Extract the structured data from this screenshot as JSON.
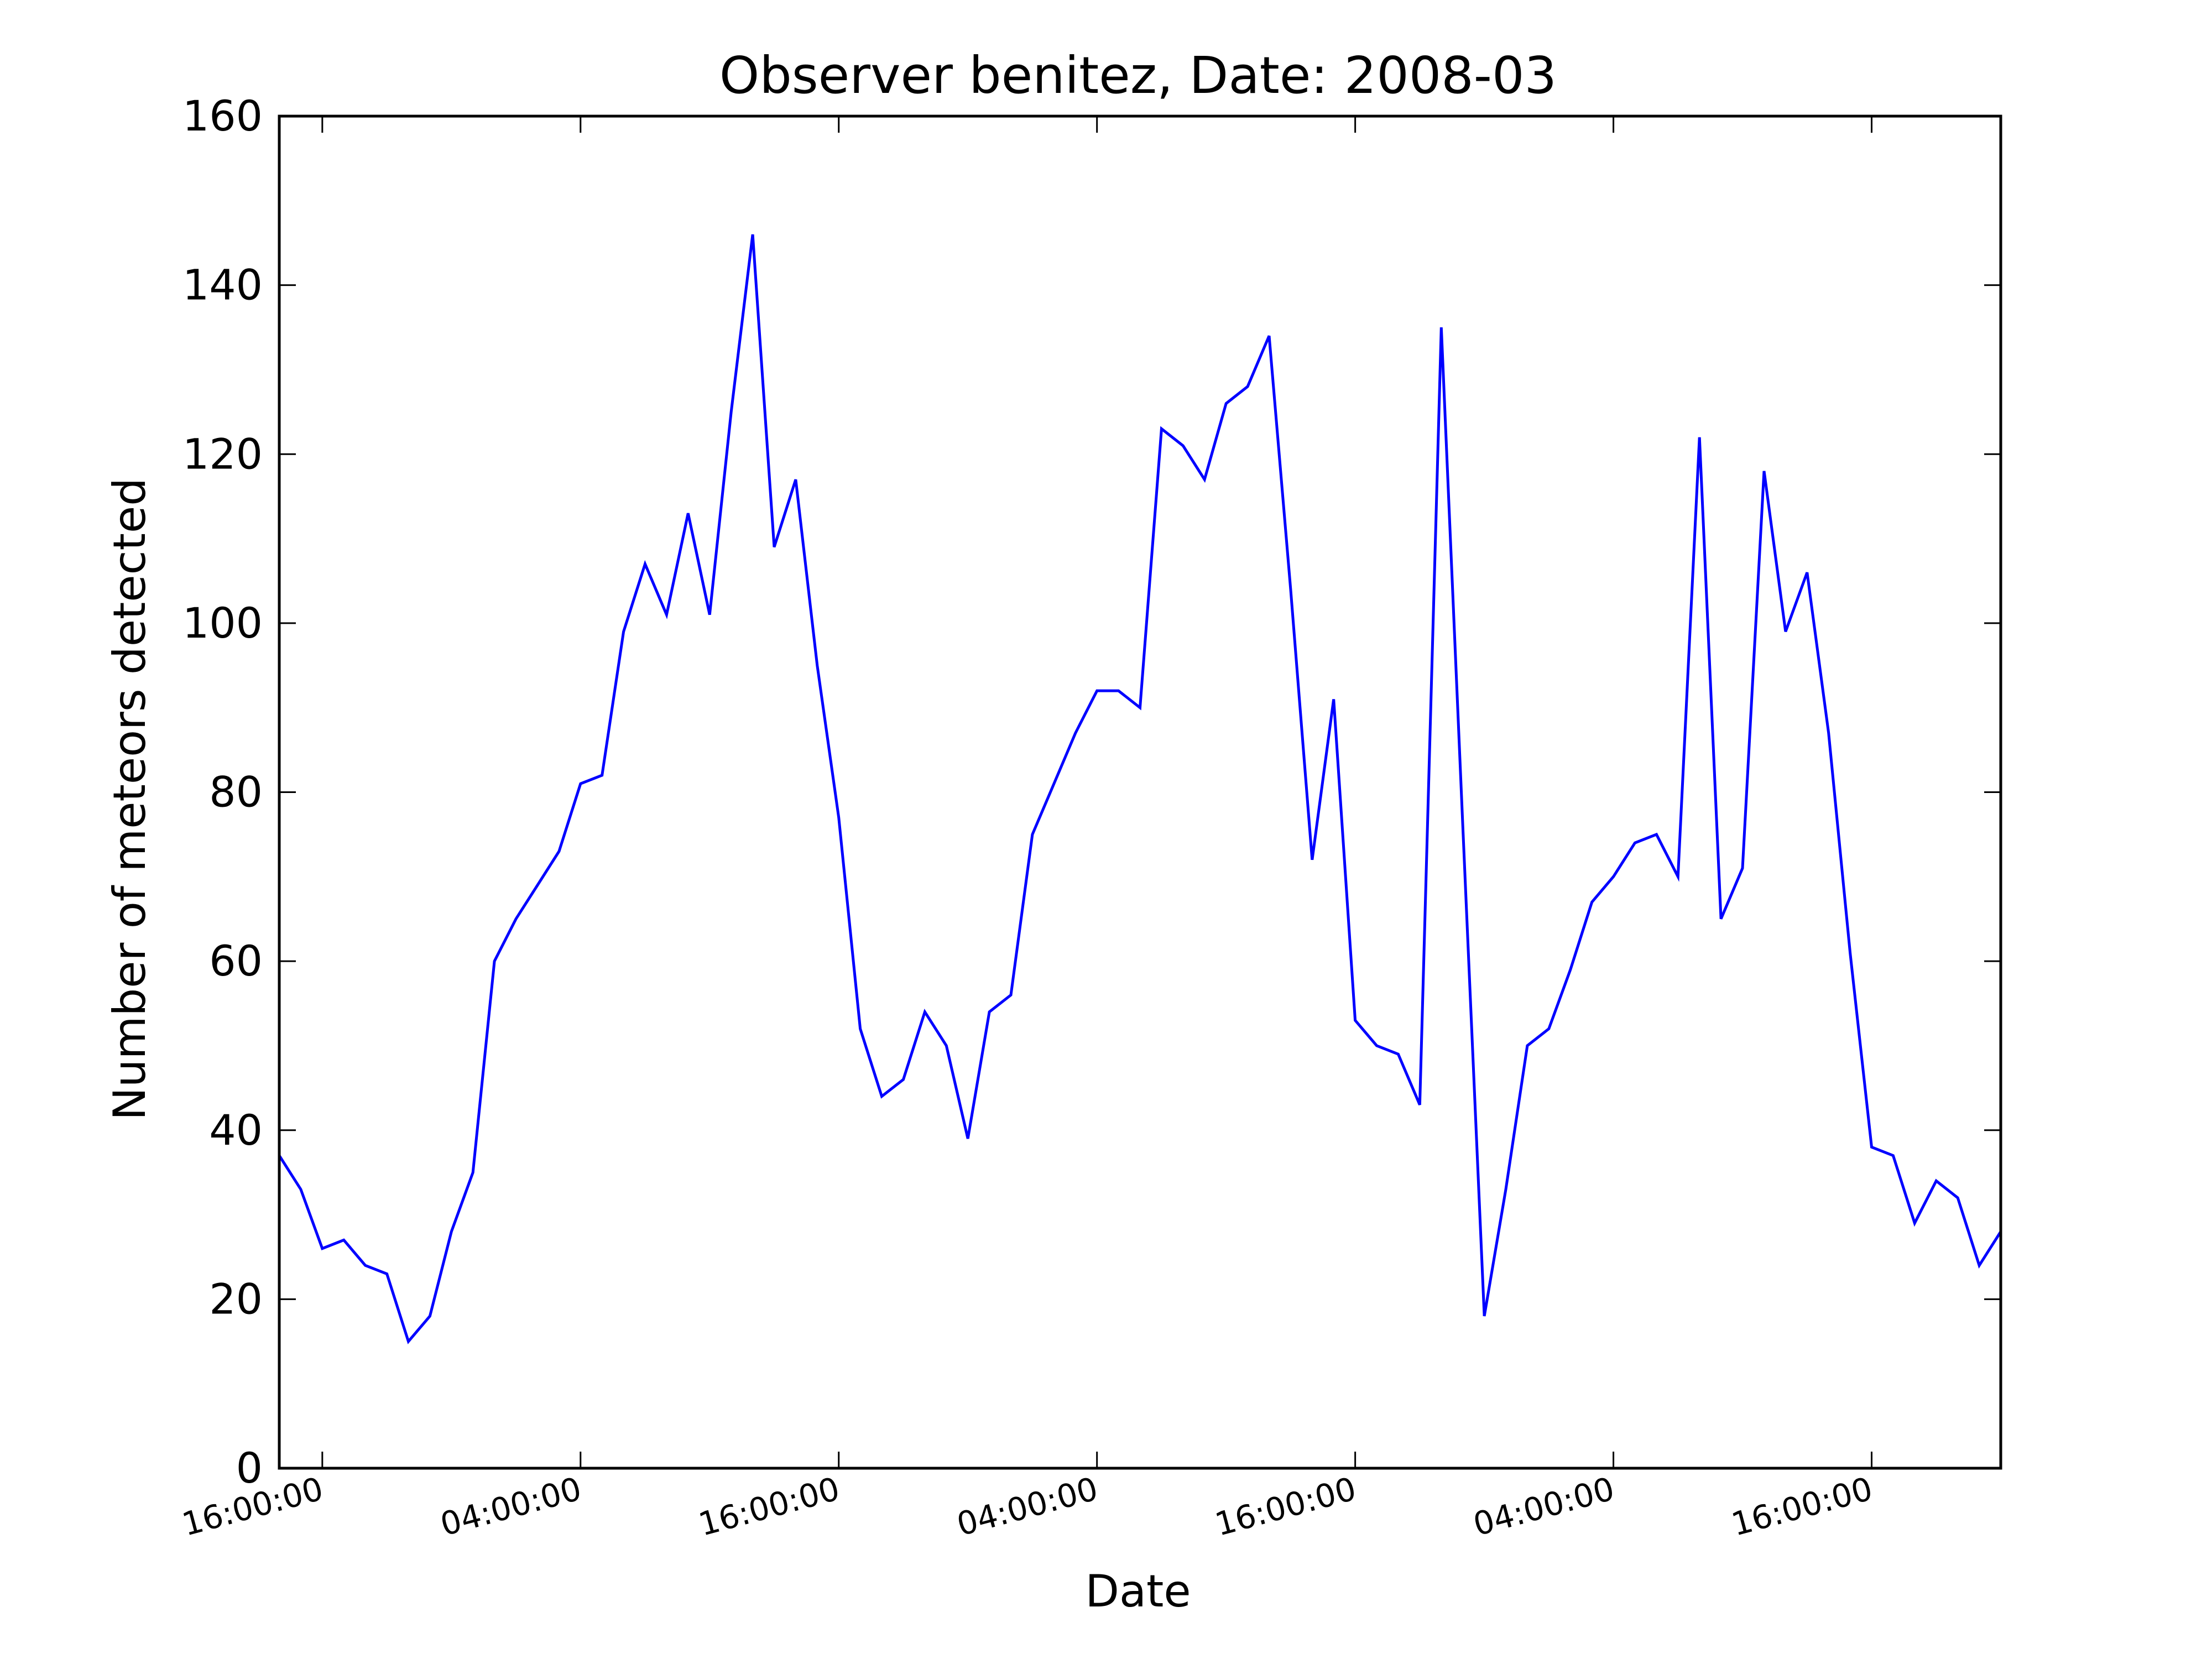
{
  "chart_data": {
    "type": "line",
    "title": "Observer benitez, Date: 2008-03",
    "xlabel": "Date",
    "ylabel": "Number of meteors detected",
    "ylim": [
      0,
      160
    ],
    "yticks": [
      0,
      20,
      40,
      60,
      80,
      100,
      120,
      140,
      160
    ],
    "xlim": [
      14,
      94
    ],
    "xticks": [
      {
        "label": "16:00:00",
        "value": 16
      },
      {
        "label": "04:00:00",
        "value": 28
      },
      {
        "label": "16:00:00",
        "value": 40
      },
      {
        "label": "04:00:00",
        "value": 52
      },
      {
        "label": "16:00:00",
        "value": 64
      },
      {
        "label": "04:00:00",
        "value": 76
      },
      {
        "label": "16:00:00",
        "value": 88
      }
    ],
    "grid": false,
    "legend": "none",
    "series": [
      {
        "color": "#0000ff",
        "x": [
          14,
          15,
          16,
          17,
          18,
          19,
          20,
          21,
          22,
          23,
          24,
          25,
          26,
          27,
          28,
          29,
          30,
          31,
          32,
          33,
          34,
          35,
          36,
          37,
          38,
          39,
          40,
          41,
          42,
          43,
          44,
          45,
          46,
          47,
          48,
          49,
          50,
          51,
          52,
          53,
          54,
          55,
          56,
          57,
          58,
          59,
          60,
          61,
          62,
          63,
          64,
          65,
          66,
          67,
          68,
          69,
          70,
          71,
          72,
          73,
          74,
          75,
          76,
          77,
          78,
          79,
          80,
          81,
          82,
          83,
          84,
          85,
          86,
          87,
          88,
          89,
          90,
          91,
          92,
          93,
          94
        ],
        "y": [
          37,
          33,
          26,
          27,
          24,
          23,
          15,
          18,
          28,
          35,
          60,
          65,
          69,
          73,
          81,
          82,
          99,
          107,
          101,
          113,
          101,
          125,
          146,
          109,
          117,
          95,
          77,
          52,
          44,
          46,
          54,
          50,
          39,
          54,
          56,
          75,
          81,
          87,
          92,
          92,
          90,
          123,
          121,
          117,
          126,
          128,
          134,
          104,
          72,
          91,
          53,
          50,
          49,
          43,
          135,
          76,
          18,
          33,
          50,
          52,
          59,
          67,
          70,
          74,
          75,
          70,
          122,
          65,
          71,
          118,
          99,
          106,
          87,
          61,
          38,
          37,
          29,
          34,
          32,
          24,
          28
        ]
      }
    ]
  }
}
